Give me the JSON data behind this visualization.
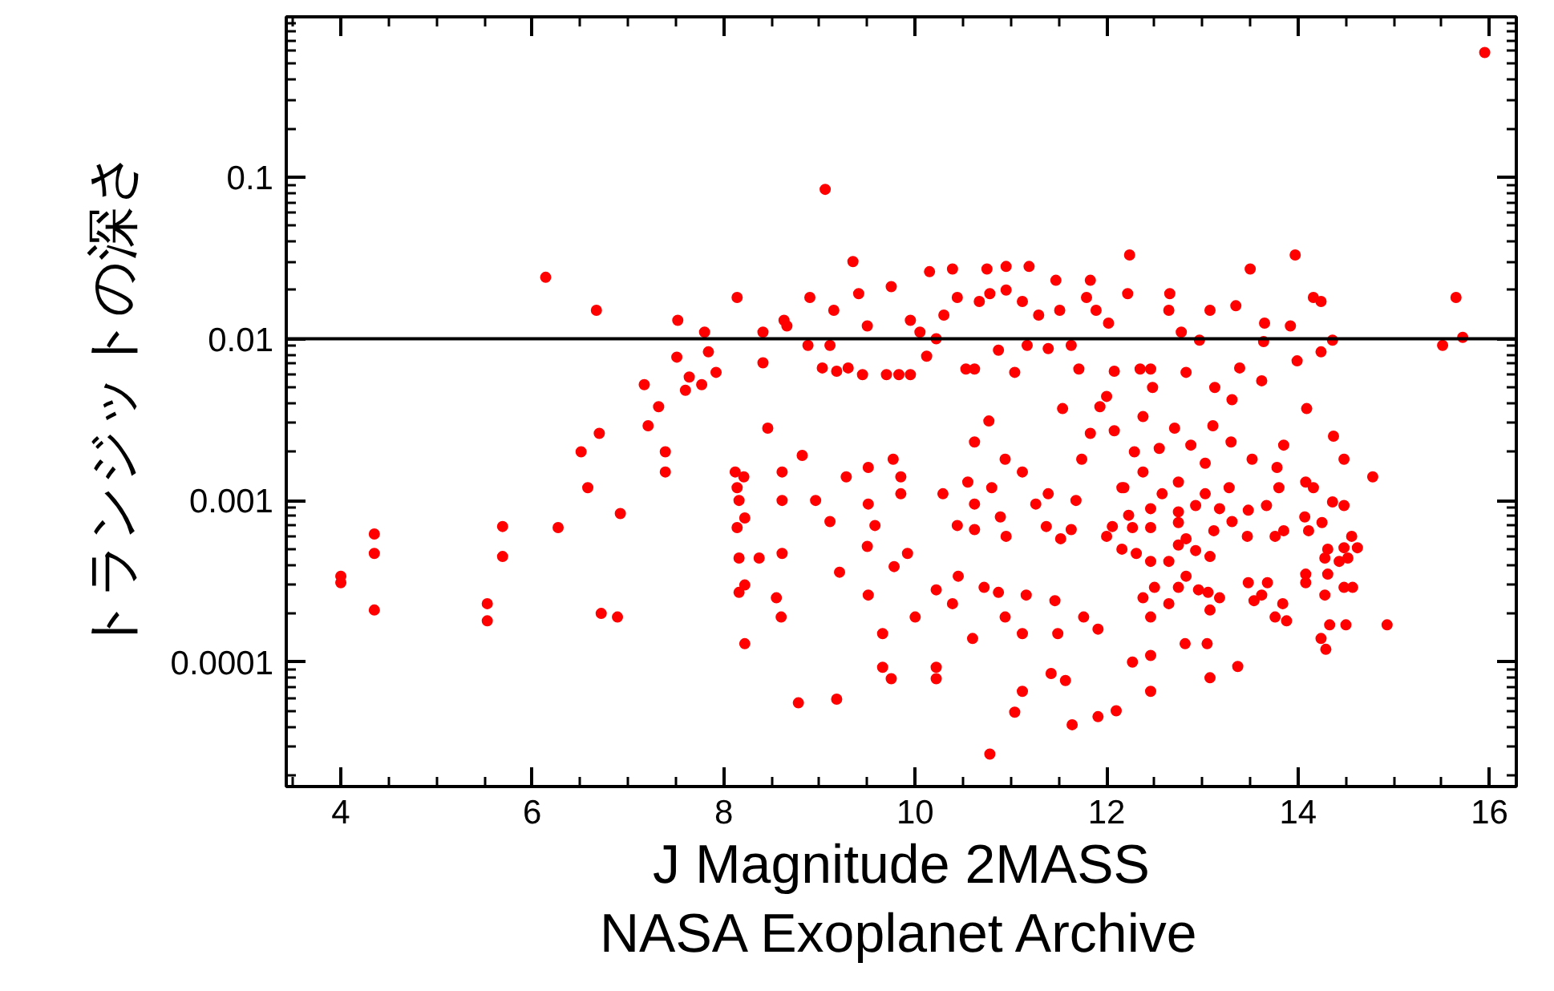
{
  "chart_data": {
    "type": "scatter",
    "xlabel": "J Magnitude 2MASS",
    "ylabel": "トランジットの深さ",
    "annotations": [
      "NASA Exoplanet Archive"
    ],
    "log": "y",
    "grid": false,
    "marker": "circle",
    "xlim": [
      3.43,
      16.28
    ],
    "ylim": [
      1.7e-05,
      0.98
    ],
    "xticks": [
      4,
      6,
      8,
      10,
      12,
      14,
      16
    ],
    "yticks": [
      0.1,
      0.01,
      0.001,
      0.0001
    ],
    "ref_lines": [
      {
        "axis": "y",
        "value": 0.01,
        "color": "#000000"
      }
    ],
    "series": [
      {
        "color": "#ff0000",
        "x": [
          4.0,
          4.0,
          4.35,
          4.35,
          4.35,
          5.53,
          5.53,
          5.69,
          5.69,
          6.14,
          6.27,
          6.51,
          6.58,
          6.67,
          6.7,
          6.72,
          6.89,
          6.92,
          7.17,
          7.21,
          7.32,
          7.39,
          7.39,
          7.51,
          7.52,
          7.6,
          7.64,
          7.77,
          7.8,
          7.84,
          7.92,
          8.14,
          8.41,
          8.41,
          8.46,
          8.12,
          8.21,
          8.14,
          8.16,
          8.22,
          8.14,
          8.16,
          8.37,
          8.22,
          8.16,
          8.22,
          9.06,
          9.35,
          8.9,
          10.15,
          10.39,
          10.75,
          10.95,
          11.19,
          11.47,
          11.83,
          9.15,
          9.41,
          9.75,
          8.63,
          8.66,
          8.88,
          9.03,
          9.11,
          9.18,
          9.3,
          9.45,
          9.5,
          9.7,
          9.83,
          9.95,
          9.95,
          10.05,
          10.12,
          10.22,
          10.3,
          10.44,
          10.53,
          10.62,
          10.67,
          10.78,
          10.87,
          10.95,
          11.04,
          11.12,
          11.17,
          11.29,
          11.39,
          11.51,
          11.54,
          11.63,
          11.71,
          11.79,
          11.89,
          12.0,
          12.02,
          12.08,
          11.83,
          8.55,
          8.6,
          8.61,
          8.61,
          8.61,
          8.82,
          8.78,
          9.18,
          8.96,
          9.11,
          9.21,
          9.28,
          9.51,
          9.51,
          9.5,
          9.51,
          9.58,
          9.66,
          9.66,
          9.75,
          9.77,
          9.85,
          9.85,
          9.78,
          9.92,
          10.0,
          10.22,
          10.22,
          10.22,
          10.29,
          10.39,
          10.44,
          10.45,
          10.6,
          10.55,
          10.62,
          10.62,
          10.62,
          10.72,
          10.77,
          10.78,
          10.8,
          10.87,
          10.89,
          10.94,
          10.94,
          10.95,
          11.04,
          11.12,
          11.12,
          11.12,
          11.16,
          11.26,
          11.37,
          11.39,
          11.42,
          11.46,
          11.49,
          11.52,
          11.57,
          11.64,
          11.63,
          11.68,
          11.74,
          11.76,
          11.91,
          11.91,
          12.1,
          12.06,
          12.0,
          12.08,
          12.16,
          12.16,
          15.95,
          12.24,
          13.97,
          13.5,
          12.22,
          12.66,
          12.65,
          13.08,
          13.35,
          14.16,
          14.24,
          15.65,
          15.72,
          15.51,
          12.78,
          12.97,
          13.65,
          13.92,
          13.64,
          14.36,
          14.24,
          13.99,
          12.35,
          12.46,
          12.83,
          12.48,
          13.13,
          13.39,
          13.62,
          13.31,
          11.93,
          14.09,
          12.38,
          13.11,
          12.71,
          12.88,
          13.3,
          12.55,
          12.29,
          14.37,
          13.85,
          13.03,
          12.38,
          13.52,
          13.78,
          14.48,
          14.78,
          14.08,
          12.18,
          12.58,
          12.75,
          13.28,
          13.8,
          14.16,
          13.03,
          12.23,
          12.46,
          12.75,
          12.93,
          13.18,
          13.48,
          13.67,
          14.07,
          14.36,
          14.48,
          12.27,
          12.46,
          12.75,
          13.12,
          13.31,
          13.47,
          13.85,
          14.11,
          14.25,
          14.56,
          12.31,
          12.46,
          12.75,
          12.83,
          13.08,
          12.93,
          13.76,
          14.28,
          14.31,
          14.48,
          14.62,
          14.52,
          14.43,
          12.65,
          12.83,
          12.75,
          12.5,
          12.96,
          13.06,
          13.18,
          13.48,
          13.68,
          14.08,
          14.08,
          14.31,
          14.48,
          14.57,
          14.28,
          13.62,
          13.54,
          12.38,
          12.65,
          13.08,
          12.46,
          13.76,
          13.88,
          13.84,
          14.93,
          14.5,
          14.33,
          14.24,
          14.29,
          12.82,
          13.05,
          12.27,
          12.46,
          13.37,
          13.08,
          12.46
        ],
        "values": [
          0.00034,
          0.00031,
          0.00062,
          0.00047,
          0.00021,
          0.00023,
          0.00018,
          0.00069,
          0.00045,
          0.024,
          0.00068,
          0.002,
          0.0012,
          0.015,
          0.0026,
          0.0002,
          0.00019,
          0.00083,
          0.0052,
          0.0029,
          0.0038,
          0.002,
          0.0015,
          0.0077,
          0.013,
          0.0048,
          0.0058,
          0.0052,
          0.011,
          0.0083,
          0.0062,
          0.018,
          0.011,
          0.0071,
          0.0028,
          0.0015,
          0.0014,
          0.0012,
          0.001,
          0.00078,
          0.00068,
          0.00044,
          0.00044,
          0.0003,
          0.00027,
          0.00013,
          0.084,
          0.03,
          0.018,
          0.026,
          0.027,
          0.027,
          0.028,
          0.028,
          0.023,
          0.023,
          0.015,
          0.019,
          0.021,
          0.013,
          0.012,
          0.0091,
          0.0066,
          0.0091,
          0.0063,
          0.0066,
          0.006,
          0.012,
          0.006,
          0.006,
          0.006,
          0.013,
          0.011,
          0.0078,
          0.01,
          0.014,
          0.018,
          0.0065,
          0.0065,
          0.017,
          0.019,
          0.0085,
          0.02,
          0.0062,
          0.017,
          0.0091,
          0.014,
          0.0087,
          0.015,
          0.0037,
          0.0091,
          0.0065,
          0.018,
          0.015,
          0.0044,
          0.0125,
          0.0063,
          0.0026,
          0.00025,
          0.00019,
          0.0015,
          0.001,
          0.00047,
          0.0019,
          5.6e-05,
          5.9e-05,
          0.001,
          0.00074,
          0.00036,
          0.0014,
          0.0016,
          0.00095,
          0.00052,
          0.00026,
          0.0007,
          0.00015,
          9.3e-05,
          7.9e-05,
          0.0018,
          0.0014,
          0.0011,
          0.00039,
          0.00047,
          0.00019,
          0.00028,
          9.3e-05,
          7.9e-05,
          0.0011,
          0.00023,
          0.0007,
          0.00034,
          0.00014,
          0.0013,
          0.0023,
          0.00095,
          0.00066,
          0.00029,
          0.0031,
          2.7e-05,
          0.0012,
          0.00027,
          0.00079,
          0.00019,
          0.0018,
          0.0006,
          4.9e-05,
          6.6e-05,
          0.0015,
          0.00015,
          0.00026,
          0.00095,
          0.00069,
          0.0011,
          8.5e-05,
          0.00024,
          0.00015,
          0.00058,
          7.7e-05,
          4.1e-05,
          0.00066,
          0.001,
          0.0018,
          0.00019,
          0.00016,
          4.6e-05,
          5e-05,
          0.00069,
          0.0006,
          0.0027,
          0.0012,
          0.0005,
          0.59,
          0.033,
          0.033,
          0.027,
          0.019,
          0.019,
          0.015,
          0.015,
          0.016,
          0.018,
          0.017,
          0.018,
          0.0102,
          0.0091,
          0.011,
          0.0098,
          0.0125,
          0.012,
          0.0096,
          0.0098,
          0.0083,
          0.0073,
          0.0065,
          0.0065,
          0.0062,
          0.005,
          0.005,
          0.0066,
          0.0055,
          0.0042,
          0.0038,
          0.0037,
          0.0033,
          0.0029,
          0.0028,
          0.0022,
          0.0023,
          0.0021,
          0.002,
          0.0025,
          0.0022,
          0.0017,
          0.0015,
          0.0018,
          0.0016,
          0.0018,
          0.0014,
          0.0013,
          0.0012,
          0.0011,
          0.0013,
          0.0012,
          0.0012,
          0.0012,
          0.0011,
          0.00081,
          0.00089,
          0.00085,
          0.00093,
          0.00089,
          0.00087,
          0.00093,
          0.00079,
          0.00098,
          0.00093,
          0.00068,
          0.00068,
          0.00073,
          0.00065,
          0.00074,
          0.0006,
          0.00065,
          0.00065,
          0.00073,
          0.0006,
          0.00047,
          0.00042,
          0.00053,
          0.00058,
          0.00045,
          0.00049,
          0.0006,
          0.00044,
          0.0005,
          0.00051,
          0.00051,
          0.00044,
          0.00042,
          0.00042,
          0.00034,
          0.00029,
          0.00029,
          0.00028,
          0.00027,
          0.00025,
          0.00031,
          0.00031,
          0.00035,
          0.00031,
          0.00035,
          0.00029,
          0.00029,
          0.00026,
          0.00026,
          0.00024,
          0.00025,
          0.00023,
          0.00021,
          0.00019,
          0.00019,
          0.00018,
          0.00023,
          0.00017,
          0.00017,
          0.00017,
          0.00014,
          0.00012,
          0.00013,
          0.00013,
          0.0001,
          0.00011,
          9.4e-05,
          8e-05,
          6.6e-05
        ]
      }
    ]
  }
}
